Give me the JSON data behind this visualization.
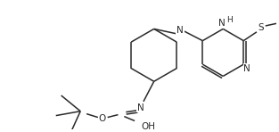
{
  "bg_color": "#ffffff",
  "line_color": "#2a2a2a",
  "line_width": 1.1,
  "font_size": 7.5,
  "fig_width": 3.13,
  "fig_height": 1.48,
  "dpi": 100,
  "xlim": [
    0,
    313
  ],
  "ylim": [
    0,
    148
  ]
}
